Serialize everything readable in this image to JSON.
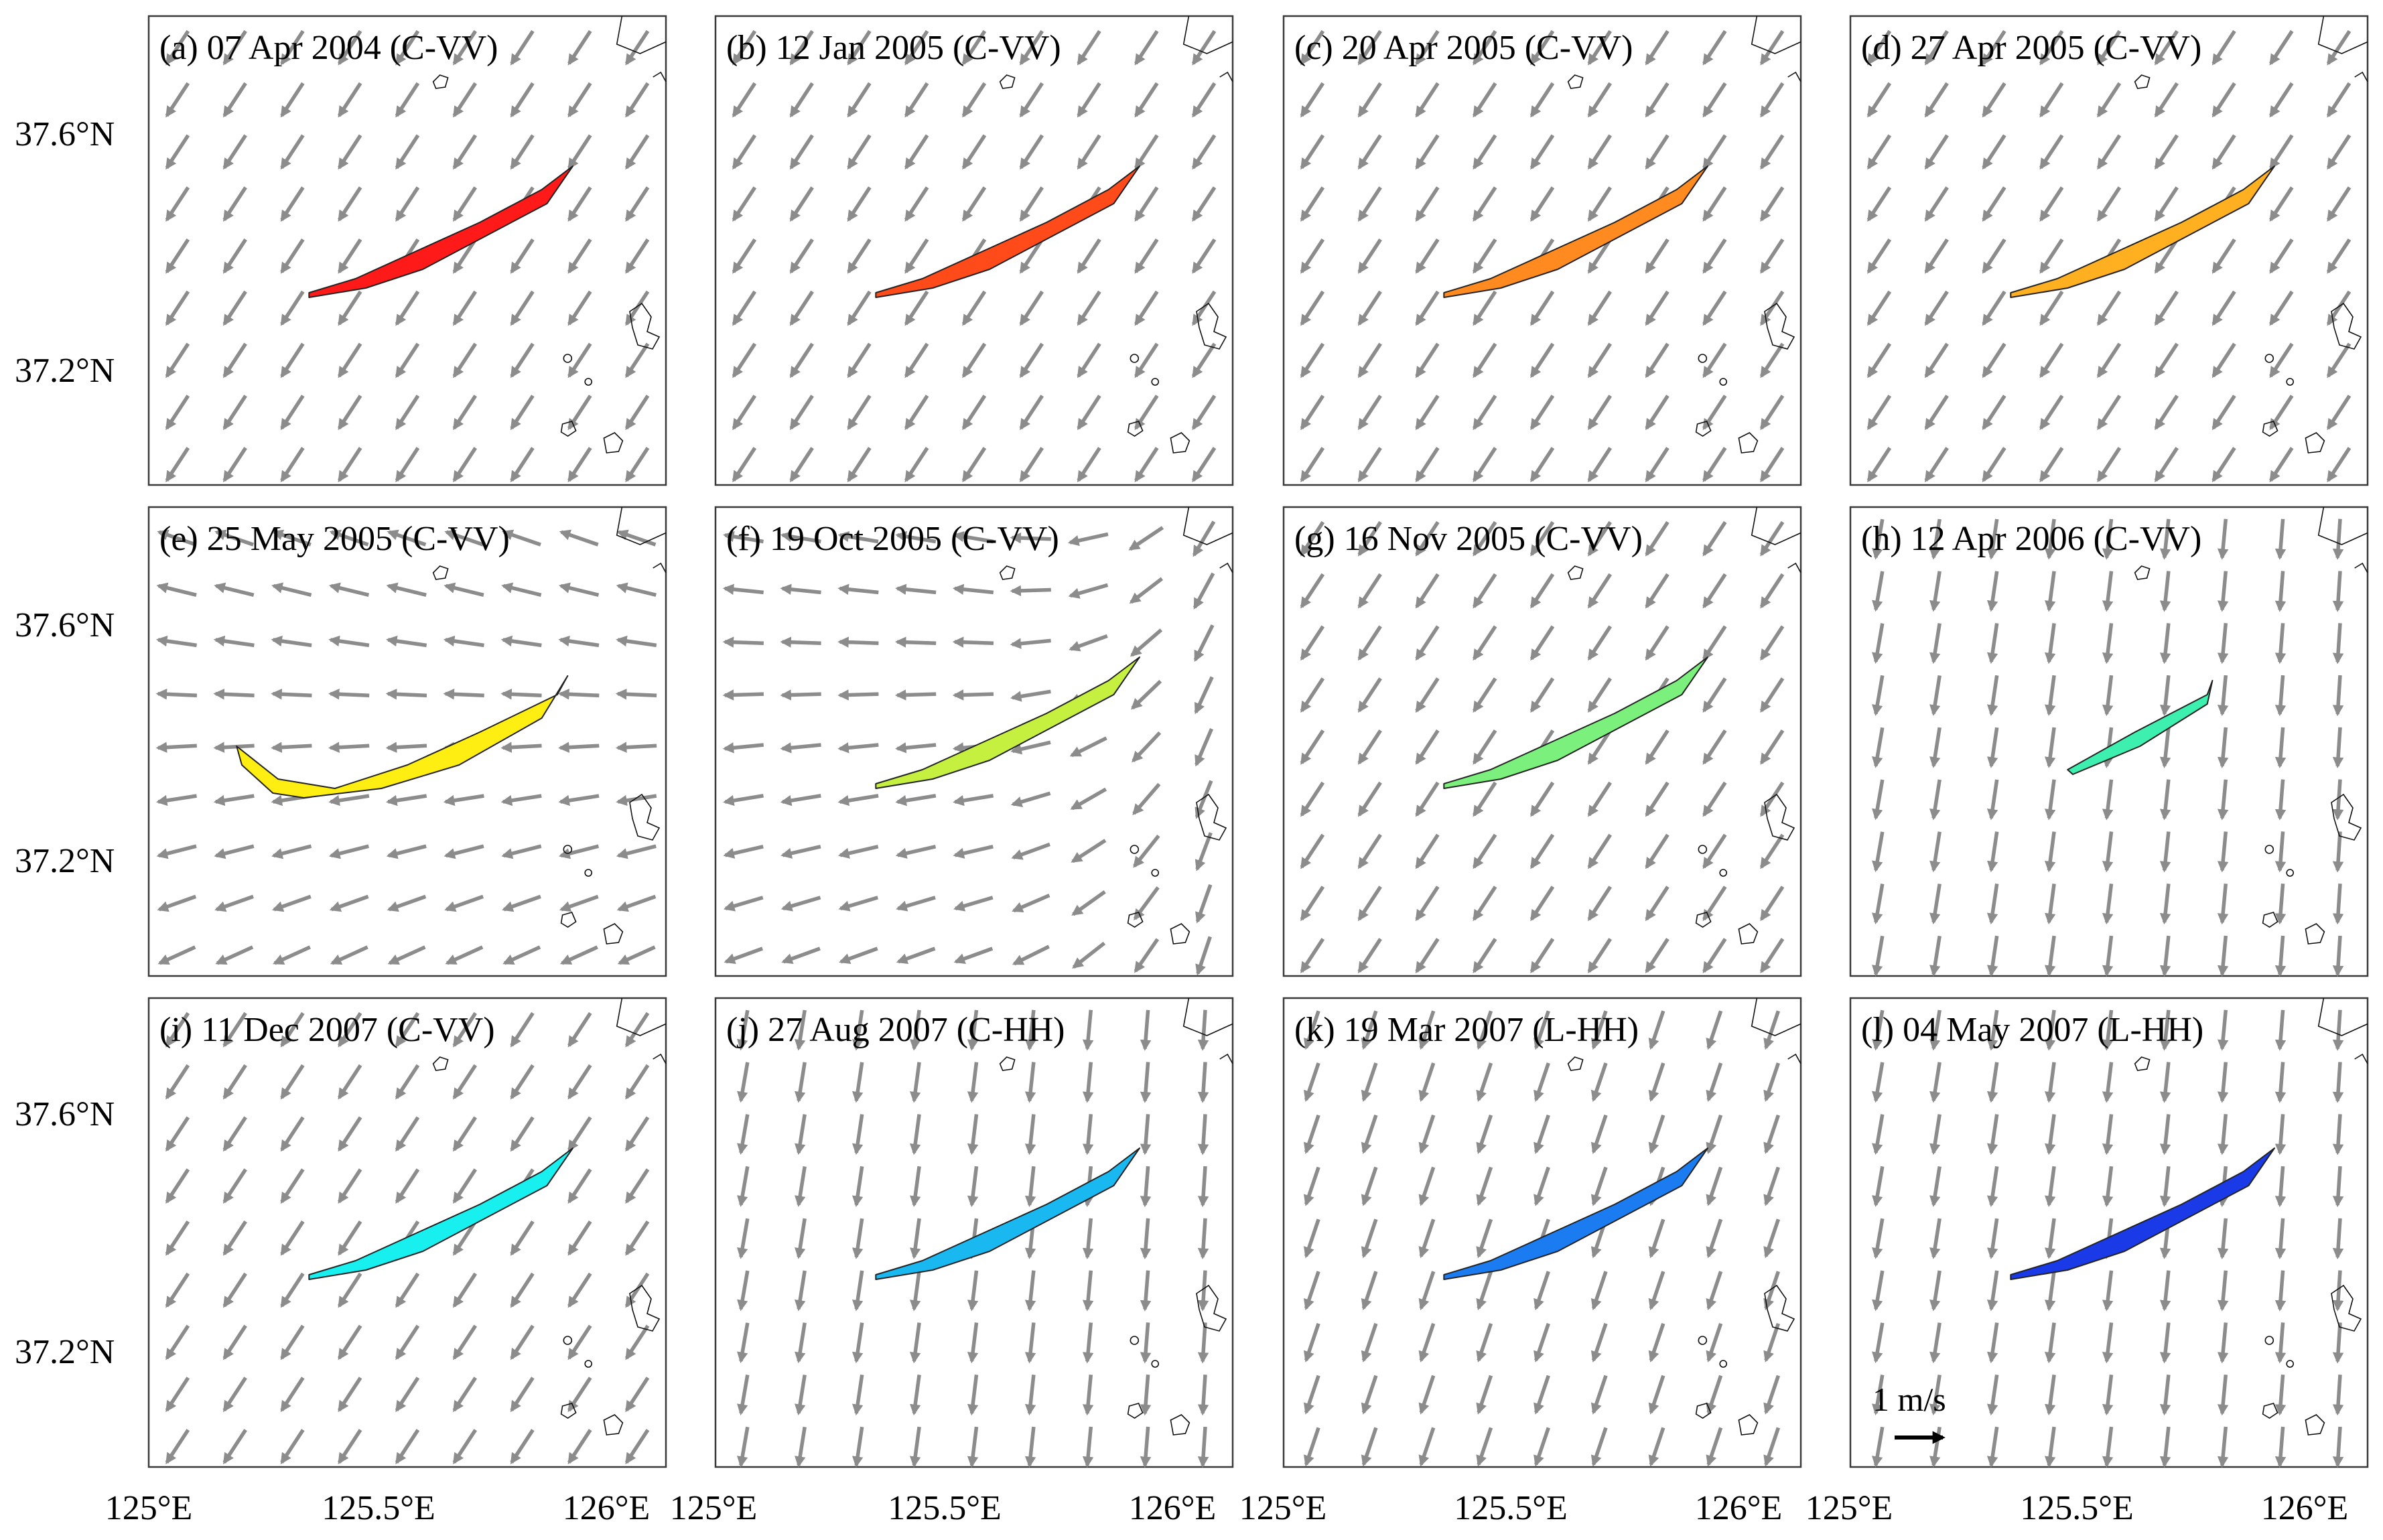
{
  "figure": {
    "colors": {
      "arrow": "#8c8c8c",
      "frame": "#3a3a3a",
      "coast": "#111111",
      "slick_outline": "#222222",
      "scale_arrow": "#000000"
    },
    "y_tick_labels": [
      "37.6°N",
      "37.2°N"
    ],
    "x_tick_labels": [
      "125°E",
      "125.5°E",
      "126°E"
    ],
    "scale_bar": {
      "label": "1 m/s",
      "value_mps": 1
    },
    "panels": [
      {
        "title": "(a) 07 Apr 2004 (C-VV)",
        "slick_color": "#ff1a1a",
        "field": "sw"
      },
      {
        "title": "(b) 12 Jan 2005 (C-VV)",
        "slick_color": "#ff4a1a",
        "field": "sw"
      },
      {
        "title": "(c) 20 Apr 2005 (C-VV)",
        "slick_color": "#ff8a1f",
        "field": "sw"
      },
      {
        "title": "(d) 27 Apr 2005 (C-VV)",
        "slick_color": "#ffb020",
        "field": "sw"
      },
      {
        "title": "(e) 25 May 2005 (C-VV)",
        "slick_color": "#ffee11",
        "field": "w"
      },
      {
        "title": "(f) 19 Oct 2005 (C-VV)",
        "slick_color": "#c6f040",
        "field": "w2"
      },
      {
        "title": "(g) 16 Nov 2005 (C-VV)",
        "slick_color": "#7cf07c",
        "field": "sw"
      },
      {
        "title": "(h) 12 Apr 2006 (C-VV)",
        "slick_color": "#3ef0b0",
        "field": "s"
      },
      {
        "title": "(i) 11 Dec 2007 (C-VV)",
        "slick_color": "#18f0f0",
        "field": "sw"
      },
      {
        "title": "(j) 27 Aug 2007 (C-HH)",
        "slick_color": "#1ab8f0",
        "field": "s"
      },
      {
        "title": "(k) 19 Mar 2007 (L-HH)",
        "slick_color": "#1a7cf0",
        "field": "ssw"
      },
      {
        "title": "(l) 04 May 2007 (L-HH)",
        "slick_color": "#1a3ae8",
        "field": "s"
      }
    ]
  }
}
